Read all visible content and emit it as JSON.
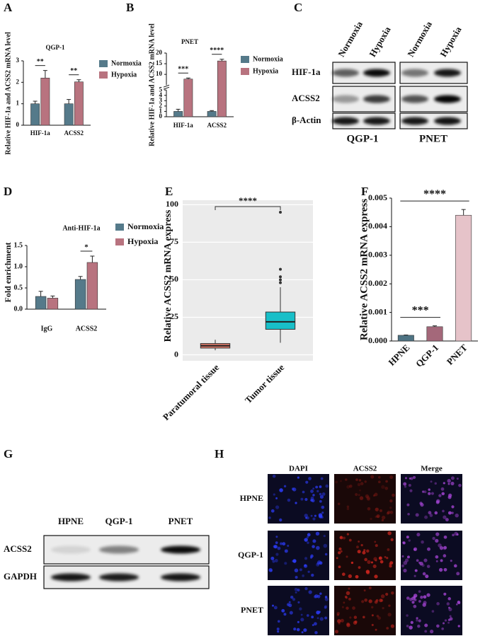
{
  "chart_data": [
    {
      "type": "bar",
      "panel": "A",
      "title": "QGP-1",
      "ylabel": "Relative HIF-1a and ACSS2 mRNA level",
      "categories": [
        "HIF-1a",
        "ACSS2"
      ],
      "series": [
        {
          "name": "Normoxia",
          "color": "#557a8a",
          "values": [
            1.0,
            1.0
          ],
          "errors": [
            0.12,
            0.2
          ]
        },
        {
          "name": "Hypoxia",
          "color": "#b8737f",
          "values": [
            2.2,
            2.02
          ],
          "errors": [
            0.35,
            0.1
          ]
        }
      ],
      "significance": [
        "**",
        "**"
      ],
      "ylim": [
        0,
        3
      ],
      "yticks": [
        0,
        1,
        2,
        3
      ]
    },
    {
      "type": "bar",
      "panel": "B",
      "title": "PNET",
      "ylabel": "Relative HIF-1a and ACSS2 mRNA level",
      "categories": [
        "HIF-1a",
        "ACSS2"
      ],
      "series": [
        {
          "name": "Normoxia",
          "color": "#557a8a",
          "values": [
            1.0,
            1.0
          ],
          "errors": [
            0.4,
            0.15
          ]
        },
        {
          "name": "Hypoxia",
          "color": "#b8737f",
          "values": [
            7.8,
            16.3
          ],
          "errors": [
            0.5,
            0.8
          ]
        }
      ],
      "significance": [
        "***",
        "****"
      ],
      "ylim": [
        0,
        20
      ],
      "axis_break": 5,
      "yticks": [
        0,
        1,
        2,
        3,
        4,
        5,
        10,
        15,
        20
      ]
    },
    {
      "type": "bar",
      "panel": "D",
      "title": "Anti-HIF-1a",
      "ylabel": "Fold enrichment",
      "categories": [
        "IgG",
        "ACSS2"
      ],
      "series": [
        {
          "name": "Normoxia",
          "color": "#557a8a",
          "values": [
            0.3,
            0.7
          ],
          "errors": [
            0.12,
            0.07
          ]
        },
        {
          "name": "Hypoxia",
          "color": "#b8737f",
          "values": [
            0.26,
            1.1
          ],
          "errors": [
            0.05,
            0.15
          ]
        }
      ],
      "significance": [
        null,
        "*"
      ],
      "ylim": [
        0,
        1.5
      ],
      "yticks": [
        {
          "value": 0,
          "label": "0.0"
        },
        0.5,
        {
          "value": 1,
          "label": "1.0"
        },
        1.5
      ]
    },
    {
      "type": "box",
      "panel": "E",
      "ylabel": "Relative ACSS2 mRNA express",
      "categories": [
        "Paratumoral tissue",
        "Tumor tissue"
      ],
      "colors": [
        "#e07b6a",
        "#18bfc8"
      ],
      "boxes": [
        {
          "min": 3,
          "q1": 4.5,
          "median": 6,
          "q3": 7.5,
          "max": 10,
          "outliers": []
        },
        {
          "min": 8,
          "q1": 17,
          "median": 22,
          "q3": 28.5,
          "max": 45,
          "outliers": [
            48,
            50,
            52,
            57,
            95
          ]
        }
      ],
      "significance": [
        null,
        "****"
      ],
      "ylim": [
        -4,
        103
      ],
      "yticks": [
        0,
        25,
        50,
        75,
        100
      ],
      "grid": true
    },
    {
      "type": "bar",
      "panel": "F",
      "ylabel": "Relative ACSS2 mRNA express",
      "categories": [
        "HPNE",
        "QGP-1",
        "PNET"
      ],
      "values": [
        0.0002,
        0.0005,
        0.0044
      ],
      "errors": [
        1e-05,
        3e-05,
        0.0002
      ],
      "colors": [
        "#4e7383",
        "#a4687a",
        "#e6c3c9"
      ],
      "significance": [
        null,
        "***",
        "****"
      ],
      "ylim": [
        0,
        0.005
      ],
      "yticks": [
        {
          "value": 0,
          "label": "0.000"
        },
        0.001,
        0.002,
        0.003,
        0.004,
        0.005
      ]
    }
  ],
  "blots": [
    {
      "panel": "C",
      "columns": [
        "Normoxia",
        "Hypoxia",
        "Normoxia",
        "Hypoxia"
      ],
      "rows": [
        "HIF-1a",
        "ACSS2",
        "β-Actin"
      ],
      "cell_lines": [
        "QGP-1",
        "PNET"
      ]
    },
    {
      "panel": "G",
      "columns": [
        "HPNE",
        "QGP-1",
        "PNET"
      ],
      "rows": [
        "ACSS2",
        "GAPDH"
      ]
    }
  ],
  "microscopy": {
    "panel": "H",
    "columns": [
      "DAPI",
      "ACSS2",
      "Merge"
    ],
    "rows": [
      "HPNE",
      "QGP-1",
      "PNET"
    ]
  }
}
